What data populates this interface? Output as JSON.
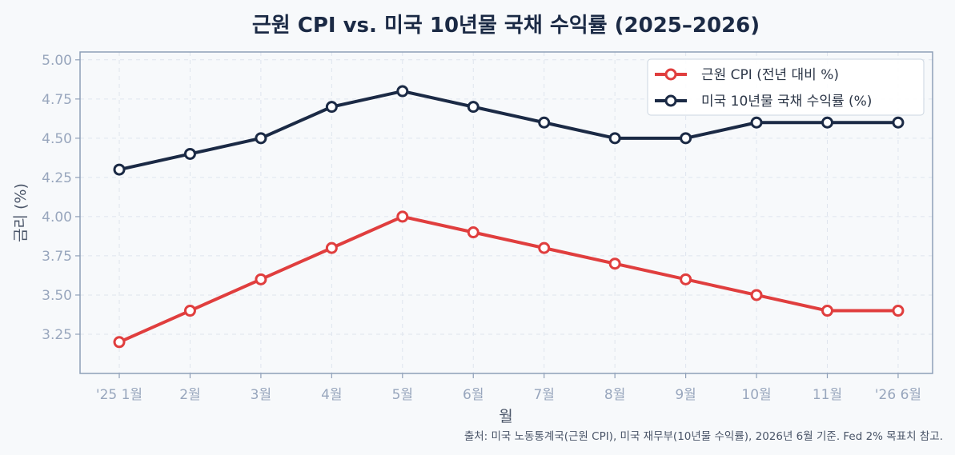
{
  "chart_data": {
    "type": "line",
    "title": "근원 CPI vs. 미국 10년물 국채 수익률 (2025–2026)",
    "xlabel": "월",
    "ylabel": "금리 (%)",
    "categories": [
      "'25 1월",
      "2월",
      "3월",
      "4월",
      "5월",
      "6월",
      "7월",
      "8월",
      "9월",
      "10월",
      "11월",
      "'26 6월"
    ],
    "ylim": [
      3.0,
      5.05
    ],
    "yticks": [
      "3.25",
      "3.50",
      "3.75",
      "4.00",
      "4.25",
      "4.50",
      "4.75",
      "5.00"
    ],
    "grid": true,
    "legend_position": "top-right",
    "series": [
      {
        "name": "근원 CPI (전년 대비 %)",
        "color": "#e03e3e",
        "values": [
          3.2,
          3.4,
          3.6,
          3.8,
          4.0,
          3.9,
          3.8,
          3.7,
          3.6,
          3.5,
          3.4,
          3.4
        ]
      },
      {
        "name": "미국 10년물 국채 수익률 (%)",
        "color": "#1b2a45",
        "values": [
          4.3,
          4.4,
          4.5,
          4.7,
          4.8,
          4.7,
          4.6,
          4.5,
          4.5,
          4.6,
          4.6,
          4.6
        ]
      }
    ],
    "source_note": "출처: 미국 노동통계국(근원 CPI), 미국 재무부(10년물 수익률), 2026년 6월 기준. Fed 2% 목표치 참고."
  }
}
